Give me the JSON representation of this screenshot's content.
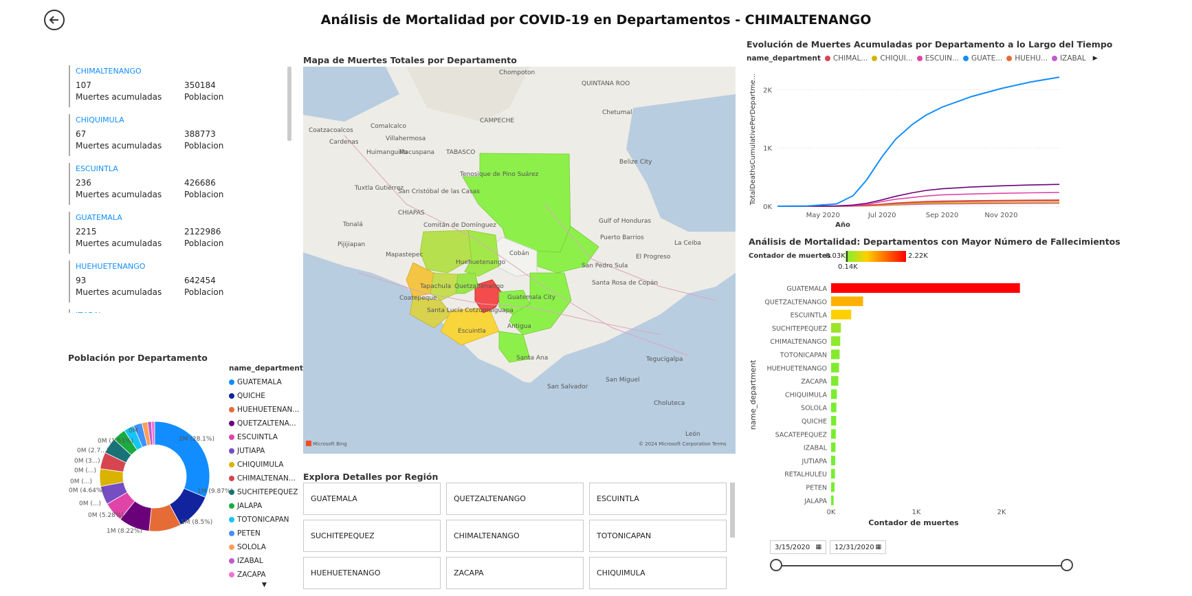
{
  "title": "Análisis de Mortalidad por COVID-19 en Departamentos - CHIMALTENANGO",
  "cards": [
    {
      "name": "CHIMALTENANGO",
      "deaths": "107",
      "deaths_label": "Muertes acumuladas",
      "population": "350184",
      "population_label": "Poblacion"
    },
    {
      "name": "CHIQUIMULA",
      "deaths": "67",
      "deaths_label": "Muertes acumuladas",
      "population": "388773",
      "population_label": "Poblacion"
    },
    {
      "name": "ESCUINTLA",
      "deaths": "236",
      "deaths_label": "Muertes acumuladas",
      "population": "426686",
      "population_label": "Poblacion"
    },
    {
      "name": "GUATEMALA",
      "deaths": "2215",
      "deaths_label": "Muertes acumuladas",
      "population": "2122986",
      "population_label": "Poblacion"
    },
    {
      "name": "HUEHUETENANGO",
      "deaths": "93",
      "deaths_label": "Muertes acumuladas",
      "population": "642454",
      "population_label": "Poblacion"
    },
    {
      "name": "IZABAL",
      "deaths": "",
      "deaths_label": "",
      "population": "",
      "population_label": ""
    }
  ],
  "map": {
    "title": "Mapa de Muertes Totales por Departamento",
    "labels": [
      "Chompoton",
      "QUINTANA ROO",
      "CAMPECHE",
      "Chetumal",
      "Coatzacoalcos",
      "Comalcalco",
      "Cardenas",
      "Villahermosa",
      "Macuspana",
      "TABASCO",
      "Huimanguillo",
      "Belize City",
      "Tenosique de Pino Suárez",
      "Tuxtla Gutiérrez",
      "San Cristóbal de las Casas",
      "CHIAPAS",
      "Gulf of Honduras",
      "Tonalá",
      "Comitán de Domínguez",
      "Puerto Barrios",
      "La Ceiba",
      "Pijijiapan",
      "Mapastepec",
      "Cobán",
      "El Progreso",
      "Huehuetenango",
      "San Pedro Sula",
      "Tapachula",
      "Quetzaltenango",
      "Coatepeque",
      "Guatemala City",
      "Santa Rosa de Copán",
      "Santa Lucía Cotzumalguapa",
      "Antigua",
      "Escuintla",
      "Santa Ana",
      "Tegucigalpa",
      "San Salvador",
      "San Miguel",
      "Choluteca",
      "León"
    ],
    "attribution": "© 2024 Microsoft Corporation Terms",
    "logo": "Microsoft Bing"
  },
  "buttons_title": "Explora Detalles por Región",
  "buttons": [
    "GUATEMALA",
    "QUETZALTENANGO",
    "ESCUINTLA",
    "SUCHITEPEQUEZ",
    "CHIMALTENANGO",
    "TOTONICAPAN",
    "HUEHUETENANGO",
    "ZACAPA",
    "CHIQUIMULA"
  ],
  "donut": {
    "title": "Población por Departamento",
    "legend_title": "name_department",
    "legend": [
      {
        "name": "GUATEMALA",
        "color": "#118DFF"
      },
      {
        "name": "QUICHE",
        "color": "#12239E"
      },
      {
        "name": "HUEHUETENAN...",
        "color": "#E66C37"
      },
      {
        "name": "QUETZALTENA...",
        "color": "#6B007B"
      },
      {
        "name": "ESCUINTLA",
        "color": "#E044A7"
      },
      {
        "name": "JUTIAPA",
        "color": "#744EC2"
      },
      {
        "name": "CHIQUIMULA",
        "color": "#D9B300"
      },
      {
        "name": "CHIMALTENAN...",
        "color": "#D64550"
      },
      {
        "name": "SUCHITEPEQUEZ",
        "color": "#197278"
      },
      {
        "name": "JALAPA",
        "color": "#1AAB40"
      },
      {
        "name": "TOTONICAPAN",
        "color": "#15C6F4"
      },
      {
        "name": "PETEN",
        "color": "#4092FF"
      },
      {
        "name": "SOLOLA",
        "color": "#FFA058"
      },
      {
        "name": "IZABAL",
        "color": "#BE5DC9"
      },
      {
        "name": "ZACAPA",
        "color": "#F472D0"
      }
    ],
    "labels": [
      "2M (28.1%)",
      "1M (9.87%)",
      "1M (8.5%)",
      "1M (8.22%)",
      "0M (5.28%)",
      "0M (...)",
      "0M (4.64%)",
      "0M (...)",
      "0M (...)",
      "0M (3...)",
      "0M (2.7...)",
      "0M (1.53%)",
      "0M"
    ]
  },
  "chart_data": [
    {
      "type": "line",
      "title": "Evolución de Muertes Acumuladas por Departamento a lo Largo del Tiempo",
      "legend_title": "name_department",
      "legend": [
        {
          "name": "CHIMAL...",
          "color": "#D64550"
        },
        {
          "name": "CHIQUI...",
          "color": "#D9B300"
        },
        {
          "name": "ESCUIN...",
          "color": "#E044A7"
        },
        {
          "name": "GUATE...",
          "color": "#118DFF"
        },
        {
          "name": "HUEHU...",
          "color": "#E66C37"
        },
        {
          "name": "IZABAL",
          "color": "#BE5DC9"
        }
      ],
      "xlabel": "Año",
      "ylabel": "TotalDeathsCumulativePerDepartme...",
      "x_ticks": [
        "May 2020",
        "Jul 2020",
        "Sep 2020",
        "Nov 2020"
      ],
      "y_ticks": [
        "0K",
        "1K",
        "2K"
      ],
      "ylim": [
        0,
        2300
      ],
      "x": [
        "2020-03-15",
        "2020-04-15",
        "2020-05-15",
        "2020-06-01",
        "2020-06-15",
        "2020-07-01",
        "2020-07-15",
        "2020-08-01",
        "2020-08-15",
        "2020-09-01",
        "2020-10-01",
        "2020-11-01",
        "2020-12-01",
        "2020-12-31"
      ],
      "series": [
        {
          "name": "GUATE...",
          "color": "#118DFF",
          "values": [
            0,
            5,
            40,
            180,
            450,
            850,
            1150,
            1400,
            1560,
            1700,
            1880,
            2020,
            2130,
            2215
          ]
        },
        {
          "name": "QUETZALTENANGO",
          "color": "#6B007B",
          "values": [
            0,
            0,
            5,
            20,
            50,
            110,
            170,
            230,
            270,
            300,
            330,
            350,
            365,
            375
          ]
        },
        {
          "name": "ESCUIN...",
          "color": "#E044A7",
          "values": [
            0,
            0,
            3,
            10,
            30,
            80,
            120,
            150,
            175,
            195,
            210,
            222,
            230,
            236
          ]
        },
        {
          "name": "CHIMAL...",
          "color": "#D64550",
          "values": [
            0,
            0,
            1,
            5,
            15,
            35,
            55,
            70,
            80,
            88,
            95,
            100,
            104,
            107
          ]
        },
        {
          "name": "HUEHU...",
          "color": "#E66C37",
          "values": [
            0,
            0,
            1,
            4,
            12,
            30,
            45,
            58,
            68,
            75,
            82,
            87,
            90,
            93
          ]
        },
        {
          "name": "CHIQUI...",
          "color": "#D9B300",
          "values": [
            0,
            0,
            1,
            3,
            8,
            20,
            32,
            42,
            50,
            55,
            60,
            63,
            65,
            67
          ]
        },
        {
          "name": "IZABAL",
          "color": "#BE5DC9",
          "values": [
            0,
            0,
            1,
            2,
            6,
            14,
            22,
            30,
            36,
            40,
            44,
            47,
            49,
            51
          ]
        }
      ]
    },
    {
      "type": "bar",
      "title": "Análisis de Mortalidad: Departamentos con Mayor Número de Fallecimientos",
      "color_legend_title": "Contador de muertes",
      "color_legend_min": "0.03K",
      "color_legend_mid": "0.14K",
      "color_legend_max": "2.22K",
      "xlabel": "Contador de muertes",
      "ylabel": "name_department",
      "x_ticks": [
        "0K",
        "1K",
        "2K"
      ],
      "xlim": [
        0,
        2500
      ],
      "categories": [
        "GUATEMALA",
        "QUETZALTENANGO",
        "ESCUINTLA",
        "SUCHITEPEQUEZ",
        "CHIMALTENANGO",
        "TOTONICAPAN",
        "HUEHUETENANGO",
        "ZACAPA",
        "CHIQUIMULA",
        "SOLOLA",
        "QUICHE",
        "SACATEPEQUEZ",
        "IZABAL",
        "JUTIAPA",
        "RETALHULEU",
        "PETEN",
        "JALAPA"
      ],
      "values": [
        2215,
        375,
        236,
        115,
        107,
        100,
        93,
        85,
        67,
        62,
        60,
        55,
        51,
        48,
        45,
        40,
        30
      ],
      "colors": [
        "#FF0000",
        "#FFB000",
        "#FFD000",
        "#9BE42A",
        "#8EE82C",
        "#85EA2D",
        "#80EB2E",
        "#7DEC2E",
        "#7AED2E",
        "#78ED2F",
        "#78ED2F",
        "#77EE2F",
        "#77EE2F",
        "#76EE2F",
        "#76EE2F",
        "#75EE2F",
        "#74EF2F"
      ]
    }
  ],
  "date_slicer": {
    "start": "3/15/2020",
    "end": "12/31/2020"
  }
}
